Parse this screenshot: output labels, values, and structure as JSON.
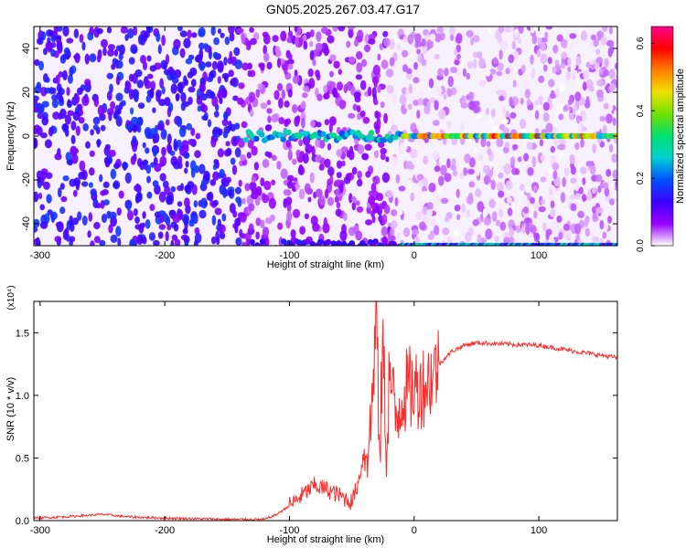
{
  "figure": {
    "title": "GN05.2025.267.03.47.G17"
  },
  "chart_data": [
    {
      "type": "heatmap",
      "xlabel": "Height of straight line (km)",
      "ylabel": "Frequency (Hz)",
      "xlim": [
        -305,
        163
      ],
      "ylim": [
        -50,
        50
      ],
      "xticks": [
        -300,
        -200,
        -100,
        0,
        100
      ],
      "yticks": [
        -40,
        -20,
        0,
        20,
        40
      ],
      "colorbar": {
        "label": "Normalized spectral amplitude",
        "ticks": [
          "0.0",
          "0.2",
          "0.4",
          "0.6"
        ],
        "range": [
          0,
          0.65
        ],
        "colors": [
          "#ffffff",
          "#9a00ff",
          "#3a00ff",
          "#0050ff",
          "#00d0d0",
          "#00e070",
          "#70e000",
          "#f0e000",
          "#ff8000",
          "#ff0000",
          "#ff0090"
        ]
      },
      "features": [
        {
          "name": "carrier",
          "frequency_hz": 0,
          "x_start": -135,
          "x_end": 163,
          "peak_amplitude": 0.6
        },
        {
          "name": "edge band",
          "frequency_hz": -50,
          "x_start": -130,
          "x_end": 163,
          "peak_amplitude": 0.3
        }
      ]
    },
    {
      "type": "line",
      "xlabel": "Height of straight line (km)",
      "ylabel": "SNR (10 * v/v)",
      "y_multiplier": "(x10⁴)",
      "xlim": [
        -305,
        163
      ],
      "ylim": [
        0,
        1.75
      ],
      "xticks": [
        -300,
        -200,
        -100,
        0,
        100
      ],
      "yticks": [
        0.0,
        0.5,
        1.0,
        1.5
      ],
      "ytick_labels": [
        "0.0",
        "0.5",
        "1.0",
        "1.5"
      ],
      "series": [
        {
          "color": "#ff2a2a",
          "x": [
            -305,
            -280,
            -250,
            -230,
            -200,
            -150,
            -120,
            -110,
            -100,
            -90,
            -80,
            -70,
            -60,
            -50,
            -45,
            -40,
            -35,
            -30,
            -28,
            -25,
            -22,
            -20,
            -15,
            -10,
            -5,
            0,
            10,
            20,
            30,
            40,
            50,
            70,
            100,
            130,
            150,
            163
          ],
          "y": [
            0.02,
            0.03,
            0.05,
            0.03,
            0.02,
            0.01,
            0.01,
            0.05,
            0.12,
            0.2,
            0.28,
            0.25,
            0.2,
            0.15,
            0.3,
            0.55,
            0.7,
            1.74,
            0.4,
            1.45,
            0.5,
            1.2,
            0.8,
            1.0,
            1.05,
            1.05,
            1.1,
            1.25,
            1.35,
            1.4,
            1.42,
            1.41,
            1.4,
            1.35,
            1.32,
            1.3
          ]
        }
      ]
    }
  ]
}
